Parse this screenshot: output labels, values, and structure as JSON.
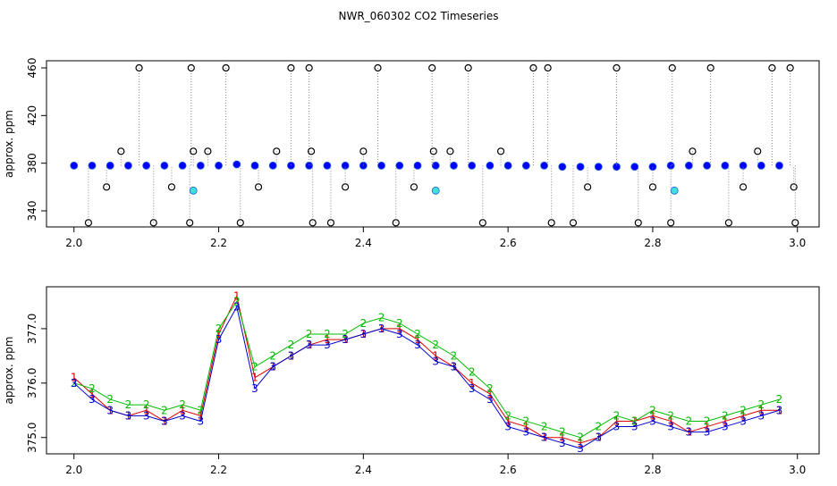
{
  "chart_data": [
    {
      "type": "scatter",
      "title": "NWR_060302  CO2 Timeseries",
      "y_label": "approx. ppm",
      "xlim": [
        1.962,
        3.03
      ],
      "ylim": [
        326.5,
        466
      ],
      "xticks": [
        {
          "value": 2,
          "label": "2.0"
        },
        2.2,
        2.4,
        2.6,
        2.8,
        {
          "value": 3,
          "label": "3.0"
        }
      ],
      "yticks": [
        340,
        380,
        420,
        460
      ],
      "series": [
        {
          "color": "#0000ff",
          "marker": "circle",
          "x": [
            2.0,
            2.025,
            2.05,
            2.075,
            2.1,
            2.125,
            2.15,
            2.175,
            2.2,
            2.225,
            2.25,
            2.275,
            2.3,
            2.325,
            2.35,
            2.375,
            2.4,
            2.425,
            2.45,
            2.475,
            2.5,
            2.525,
            2.55,
            2.575,
            2.6,
            2.625,
            2.65,
            2.675,
            2.7,
            2.725,
            2.75,
            2.775,
            2.8,
            2.825,
            2.85,
            2.875,
            2.9,
            2.925,
            2.95,
            2.975
          ],
          "values": [
            378,
            378,
            378,
            378,
            378,
            378,
            378,
            378,
            378,
            379,
            378,
            378,
            378,
            378,
            378,
            378,
            378,
            378,
            378,
            378,
            378,
            378,
            378,
            378,
            378,
            378,
            378,
            377,
            377,
            377,
            377,
            377,
            377,
            378,
            378,
            378,
            378,
            378,
            378,
            378
          ]
        },
        {
          "color": "#000000",
          "marker": "outlier",
          "x": [
            2.02,
            2.045,
            2.065,
            2.09,
            2.11,
            2.135,
            2.16,
            2.162,
            2.165,
            2.185,
            2.21,
            2.23,
            2.255,
            2.28,
            2.3,
            2.325,
            2.328,
            2.33,
            2.355,
            2.375,
            2.4,
            2.42,
            2.445,
            2.47,
            2.495,
            2.497,
            2.52,
            2.545,
            2.565,
            2.59,
            2.635,
            2.655,
            2.66,
            2.69,
            2.71,
            2.75,
            2.78,
            2.8,
            2.825,
            2.827,
            2.855,
            2.88,
            2.905,
            2.925,
            2.945,
            2.965,
            2.99,
            2.995,
            2.997
          ],
          "values": [
            330,
            360,
            390,
            460,
            330,
            360,
            330,
            460,
            390,
            390,
            460,
            330,
            360,
            390,
            460,
            460,
            390,
            330,
            330,
            360,
            390,
            460,
            330,
            360,
            460,
            390,
            390,
            460,
            330,
            390,
            460,
            460,
            330,
            330,
            360,
            460,
            330,
            360,
            330,
            460,
            390,
            460,
            330,
            360,
            390,
            460,
            460,
            360,
            330
          ]
        },
        {
          "color": "#40e0e0",
          "marker": "circle",
          "x": [
            2.165,
            2.5,
            2.83
          ],
          "values": [
            357,
            357,
            357
          ]
        }
      ]
    },
    {
      "type": "symbols",
      "y_label": "approx. ppm",
      "xlim": [
        1.962,
        3.03
      ],
      "ylim": [
        374.7,
        377.77
      ],
      "xticks": [
        {
          "value": 2,
          "label": "2.0"
        },
        2.2,
        2.4,
        2.6,
        2.8,
        {
          "value": 3,
          "label": "3.0"
        }
      ],
      "yticks": [
        {
          "value": 375,
          "label": "375.0"
        },
        {
          "value": 376,
          "label": "376.0"
        },
        {
          "value": 377,
          "label": "377.0"
        }
      ],
      "x": [
        2.0,
        2.025,
        2.05,
        2.075,
        2.1,
        2.125,
        2.15,
        2.175,
        2.2,
        2.225,
        2.25,
        2.275,
        2.3,
        2.325,
        2.35,
        2.375,
        2.4,
        2.425,
        2.45,
        2.475,
        2.5,
        2.525,
        2.55,
        2.575,
        2.6,
        2.625,
        2.65,
        2.675,
        2.7,
        2.725,
        2.75,
        2.775,
        2.8,
        2.825,
        2.85,
        2.875,
        2.9,
        2.925,
        2.95,
        2.975
      ],
      "series": [
        {
          "name": "1",
          "color": "#dd0000",
          "values": [
            376.1,
            375.8,
            375.5,
            375.4,
            375.5,
            375.3,
            375.5,
            375.4,
            376.9,
            377.6,
            376.1,
            376.3,
            376.5,
            376.7,
            376.8,
            376.8,
            376.9,
            377.0,
            377.0,
            376.8,
            376.5,
            376.3,
            376.0,
            375.8,
            375.3,
            375.2,
            375.0,
            375.0,
            374.9,
            375.0,
            375.3,
            375.3,
            375.4,
            375.3,
            375.1,
            375.2,
            375.3,
            375.4,
            375.5,
            375.5
          ]
        },
        {
          "name": "2",
          "color": "#00bb00",
          "values": [
            376.0,
            375.9,
            375.7,
            375.6,
            375.6,
            375.5,
            375.6,
            375.5,
            377.0,
            377.5,
            376.3,
            376.5,
            376.7,
            376.9,
            376.9,
            376.9,
            377.1,
            377.2,
            377.1,
            376.9,
            376.7,
            376.5,
            376.2,
            375.9,
            375.4,
            375.3,
            375.2,
            375.1,
            375.0,
            375.2,
            375.4,
            375.3,
            375.5,
            375.4,
            375.3,
            375.3,
            375.4,
            375.5,
            375.6,
            375.7
          ]
        },
        {
          "name": "3",
          "color": "#0000cc",
          "values": [
            376.0,
            375.7,
            375.5,
            375.4,
            375.4,
            375.3,
            375.4,
            375.3,
            376.8,
            377.4,
            375.9,
            376.3,
            376.5,
            376.7,
            376.7,
            376.8,
            376.9,
            377.0,
            376.9,
            376.7,
            376.4,
            376.3,
            375.9,
            375.7,
            375.2,
            375.1,
            375.0,
            374.9,
            374.8,
            375.0,
            375.2,
            375.2,
            375.3,
            375.2,
            375.1,
            375.1,
            375.2,
            375.3,
            375.4,
            375.5
          ]
        }
      ]
    }
  ]
}
